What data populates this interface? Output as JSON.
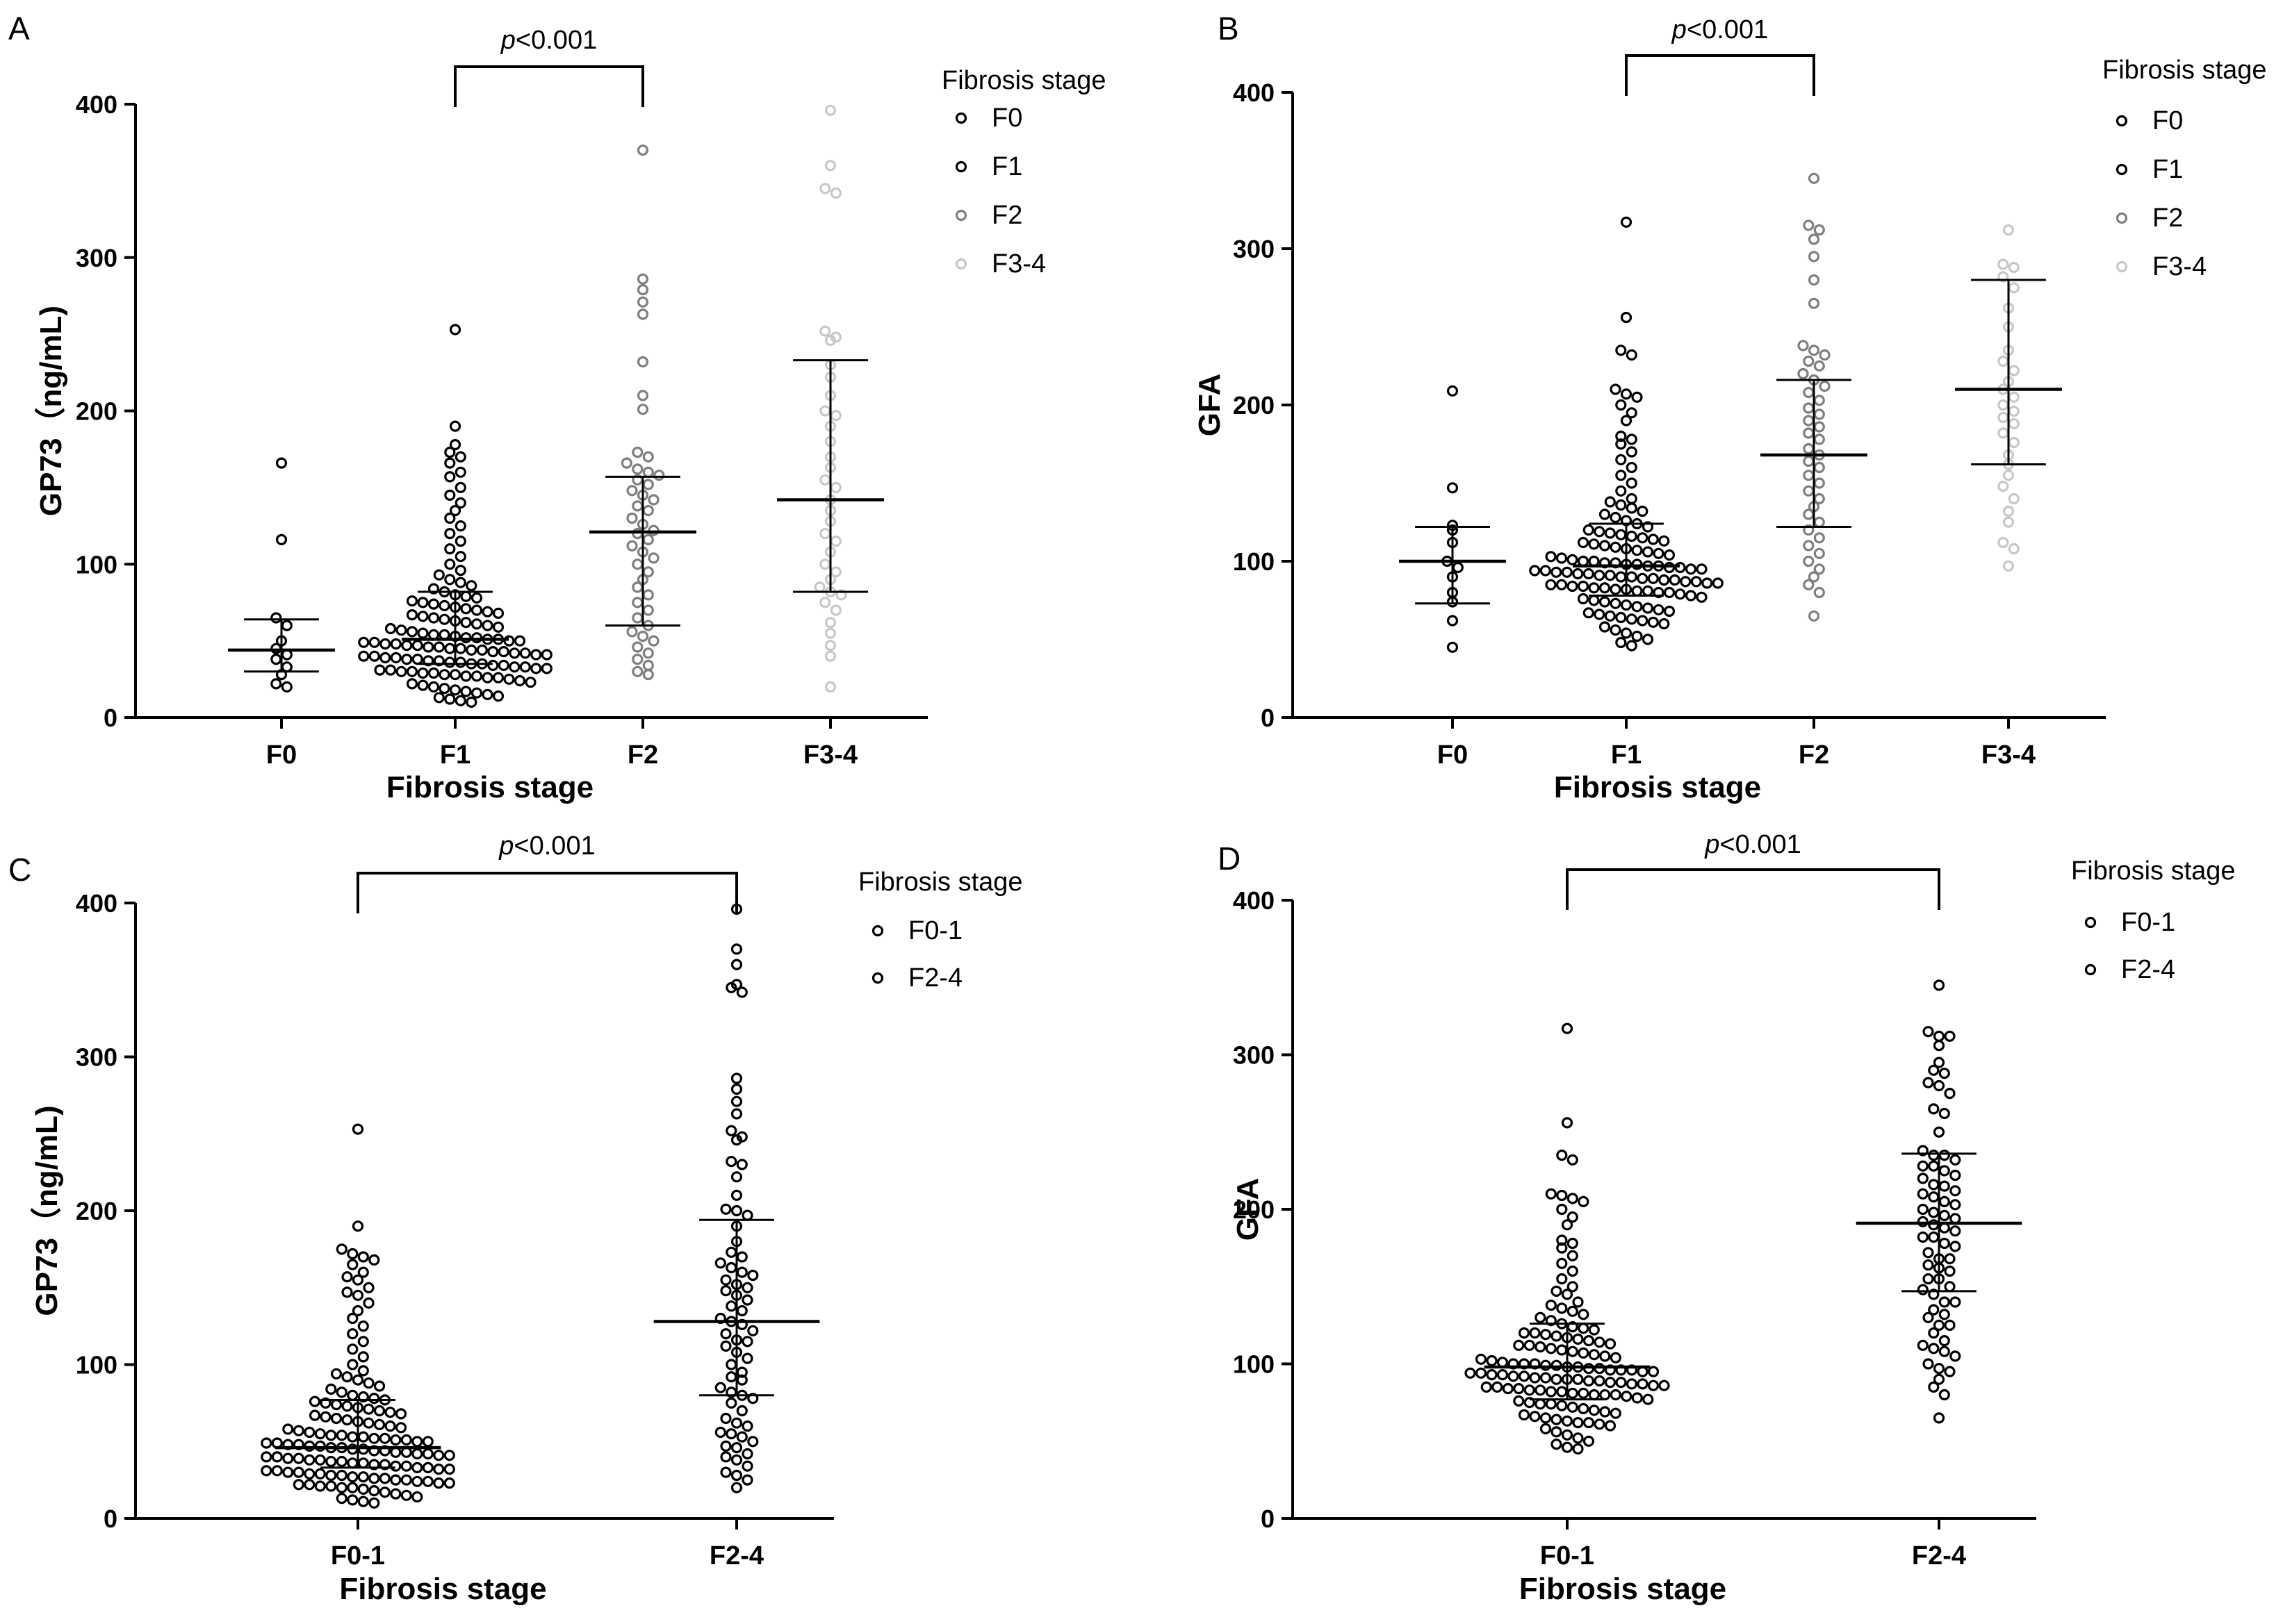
{
  "colors": {
    "F0": "#000000",
    "F1": "#000000",
    "F2": "#7f7f7f",
    "F3-4": "#c8c8c8",
    "F0-1": "#000000",
    "F2-4": "#000000",
    "axis": "#000000"
  },
  "chart_data": [
    {
      "id": "A",
      "type": "scatter",
      "panel_label": "A",
      "title": "",
      "xlabel": "Fibrosis stage",
      "ylabel": "GP73（ng/mL)",
      "ylim": [
        0,
        400
      ],
      "yticks": [
        0,
        100,
        200,
        300,
        400
      ],
      "categories": [
        "F0",
        "F1",
        "F2",
        "F3-4"
      ],
      "legend_title": "Fibrosis stage",
      "legend": [
        "F0",
        "F1",
        "F2",
        "F3-4"
      ],
      "comparison": {
        "from": "F1",
        "to": "F2",
        "text": "p<0.001",
        "italic": "p",
        "rest": "<0.001"
      },
      "summary": [
        {
          "category": "F0",
          "median": 44,
          "q1": 30,
          "q3": 64
        },
        {
          "category": "F1",
          "median": 51,
          "q1": 35,
          "q3": 82
        },
        {
          "category": "F2",
          "median": 121,
          "q1": 60,
          "q3": 157
        },
        {
          "category": "F3-4",
          "median": 142,
          "q1": 82,
          "q3": 233
        }
      ],
      "series": [
        {
          "name": "F0",
          "values": [
            166,
            116,
            65,
            60,
            50,
            45,
            41,
            38,
            33,
            28,
            22,
            20
          ]
        },
        {
          "name": "F1",
          "values": [
            253,
            190,
            178,
            173,
            170,
            166,
            160,
            157,
            150,
            145,
            140,
            135,
            130,
            125,
            120,
            115,
            110,
            105,
            100,
            96,
            93,
            90,
            88,
            86,
            84,
            82,
            80,
            79,
            78,
            76,
            75,
            74,
            73,
            72,
            71,
            70,
            69,
            68,
            67,
            66,
            65,
            64,
            63,
            62,
            61,
            60,
            59,
            58,
            57,
            56,
            55,
            54,
            54,
            53,
            52,
            52,
            51,
            51,
            50,
            50,
            49,
            49,
            48,
            48,
            47,
            47,
            46,
            46,
            45,
            45,
            44,
            44,
            43,
            43,
            42,
            42,
            41,
            41,
            40,
            40,
            39,
            39,
            38,
            38,
            37,
            37,
            36,
            36,
            35,
            35,
            34,
            34,
            33,
            33,
            32,
            32,
            31,
            31,
            30,
            30,
            29,
            29,
            28,
            28,
            27,
            27,
            26,
            26,
            25,
            24,
            23,
            22,
            21,
            20,
            19,
            18,
            17,
            16,
            15,
            14,
            13,
            12,
            11,
            10
          ]
        },
        {
          "name": "F2",
          "values": [
            370,
            286,
            279,
            271,
            263,
            232,
            210,
            201,
            173,
            170,
            166,
            162,
            160,
            158,
            155,
            152,
            148,
            145,
            142,
            138,
            135,
            130,
            126,
            122,
            120,
            116,
            112,
            108,
            104,
            100,
            95,
            90,
            85,
            80,
            75,
            70,
            65,
            60,
            56,
            53,
            50,
            46,
            42,
            38,
            34,
            30,
            28
          ]
        },
        {
          "name": "F3-4",
          "values": [
            396,
            360,
            345,
            342,
            252,
            248,
            246,
            230,
            222,
            210,
            200,
            197,
            190,
            180,
            170,
            163,
            155,
            150,
            142,
            135,
            128,
            120,
            115,
            108,
            100,
            95,
            90,
            85,
            82,
            80,
            75,
            70,
            62,
            55,
            47,
            40,
            20
          ]
        }
      ]
    },
    {
      "id": "B",
      "type": "scatter",
      "panel_label": "B",
      "title": "",
      "xlabel": "Fibrosis stage",
      "ylabel": "GFA",
      "ylim": [
        0,
        400
      ],
      "yticks": [
        0,
        100,
        200,
        300,
        400
      ],
      "categories": [
        "F0",
        "F1",
        "F2",
        "F3-4"
      ],
      "legend_title": "Fibrosis stage",
      "legend": [
        "F0",
        "F1",
        "F2",
        "F3-4"
      ],
      "comparison": {
        "from": "F1",
        "to": "F2",
        "text": "p<0.001",
        "italic": "p",
        "rest": "<0.001"
      },
      "summary": [
        {
          "category": "F0",
          "median": 100,
          "q1": 73,
          "q3": 122
        },
        {
          "category": "F1",
          "median": 97,
          "q1": 78,
          "q3": 124
        },
        {
          "category": "F2",
          "median": 168,
          "q1": 122,
          "q3": 216
        },
        {
          "category": "F3-4",
          "median": 210,
          "q1": 162,
          "q3": 280
        }
      ],
      "series": [
        {
          "name": "F0",
          "values": [
            209,
            147,
            123,
            120,
            112,
            100,
            96,
            90,
            80,
            74,
            62,
            45
          ]
        },
        {
          "name": "F1",
          "values": [
            317,
            256,
            235,
            232,
            210,
            207,
            205,
            200,
            195,
            190,
            180,
            178,
            175,
            170,
            165,
            160,
            155,
            150,
            145,
            140,
            138,
            136,
            134,
            132,
            130,
            128,
            126,
            124,
            122,
            120,
            119,
            118,
            117,
            116,
            115,
            114,
            113,
            112,
            111,
            110,
            109,
            108,
            107,
            106,
            105,
            104,
            103,
            102,
            101,
            100,
            100,
            99,
            99,
            98,
            98,
            97,
            97,
            96,
            96,
            95,
            95,
            94,
            94,
            93,
            93,
            92,
            92,
            91,
            91,
            90,
            90,
            89,
            89,
            88,
            88,
            87,
            87,
            86,
            86,
            85,
            85,
            84,
            84,
            83,
            83,
            82,
            82,
            81,
            81,
            80,
            80,
            79,
            78,
            77,
            76,
            75,
            74,
            73,
            72,
            71,
            70,
            69,
            68,
            67,
            66,
            65,
            64,
            63,
            62,
            61,
            60,
            58,
            56,
            54,
            52,
            50,
            48,
            46
          ]
        },
        {
          "name": "F2",
          "values": [
            345,
            315,
            312,
            306,
            295,
            280,
            265,
            238,
            235,
            232,
            228,
            225,
            220,
            216,
            212,
            208,
            203,
            198,
            194,
            190,
            186,
            182,
            178,
            172,
            168,
            164,
            160,
            155,
            150,
            145,
            140,
            135,
            130,
            125,
            120,
            115,
            110,
            105,
            100,
            95,
            90,
            85,
            80,
            65
          ]
        },
        {
          "name": "F3-4",
          "values": [
            312,
            290,
            288,
            282,
            275,
            262,
            250,
            235,
            228,
            222,
            215,
            210,
            205,
            200,
            196,
            192,
            188,
            182,
            176,
            168,
            162,
            155,
            148,
            140,
            132,
            125,
            112,
            108,
            97
          ]
        }
      ]
    },
    {
      "id": "C",
      "type": "scatter",
      "panel_label": "C",
      "title": "",
      "xlabel": "Fibrosis stage",
      "ylabel": "GP73（ng/mL)",
      "ylim": [
        0,
        400
      ],
      "yticks": [
        0,
        100,
        200,
        300,
        400
      ],
      "categories": [
        "F0-1",
        "F2-4"
      ],
      "legend_title": "Fibrosis stage",
      "legend": [
        "F0-1",
        "F2-4"
      ],
      "comparison": {
        "from": "F0-1",
        "to": "F2-4",
        "text": "p<0.001",
        "italic": "p",
        "rest": "<0.001"
      },
      "summary": [
        {
          "category": "F0-1",
          "median": 46,
          "q1": 33,
          "q3": 77
        },
        {
          "category": "F2-4",
          "median": 128,
          "q1": 80,
          "q3": 194
        }
      ],
      "series": [
        {
          "name": "F0-1",
          "values": [
            253,
            190,
            175,
            172,
            170,
            168,
            165,
            160,
            157,
            155,
            150,
            147,
            145,
            140,
            135,
            130,
            125,
            120,
            115,
            110,
            105,
            100,
            96,
            94,
            92,
            90,
            88,
            86,
            84,
            82,
            80,
            79,
            78,
            77,
            76,
            75,
            74,
            73,
            72,
            71,
            70,
            69,
            68,
            67,
            66,
            65,
            64,
            63,
            62,
            61,
            60,
            59,
            58,
            57,
            56,
            55,
            54,
            54,
            53,
            53,
            52,
            52,
            51,
            51,
            50,
            50,
            49,
            49,
            48,
            48,
            47,
            47,
            46,
            46,
            45,
            45,
            44,
            44,
            43,
            43,
            42,
            42,
            41,
            41,
            40,
            40,
            39,
            39,
            38,
            38,
            37,
            37,
            36,
            36,
            35,
            35,
            34,
            34,
            33,
            33,
            32,
            32,
            31,
            31,
            30,
            30,
            29,
            29,
            28,
            28,
            27,
            27,
            26,
            26,
            25,
            25,
            24,
            24,
            23,
            23,
            22,
            22,
            21,
            21,
            20,
            20,
            19,
            18,
            17,
            16,
            15,
            14,
            13,
            12,
            11,
            10
          ]
        },
        {
          "name": "F2-4",
          "values": [
            396,
            370,
            360,
            347,
            345,
            342,
            286,
            279,
            271,
            263,
            252,
            248,
            246,
            232,
            230,
            222,
            210,
            201,
            200,
            197,
            190,
            180,
            173,
            170,
            166,
            163,
            160,
            158,
            155,
            152,
            150,
            148,
            145,
            142,
            138,
            135,
            130,
            128,
            126,
            122,
            120,
            116,
            115,
            112,
            108,
            104,
            100,
            95,
            92,
            90,
            85,
            82,
            80,
            78,
            75,
            70,
            65,
            62,
            60,
            56,
            55,
            53,
            50,
            47,
            46,
            42,
            40,
            38,
            34,
            30,
            28,
            25,
            20
          ]
        }
      ]
    },
    {
      "id": "D",
      "type": "scatter",
      "panel_label": "D",
      "title": "",
      "xlabel": "Fibrosis stage",
      "ylabel": "GFA",
      "ylim": [
        0,
        400
      ],
      "yticks": [
        0,
        100,
        200,
        300,
        400
      ],
      "categories": [
        "F0-1",
        "F2-4"
      ],
      "legend_title": "Fibrosis stage",
      "legend": [
        "F0-1",
        "F2-4"
      ],
      "comparison": {
        "from": "F0-1",
        "to": "F2-4",
        "text": "p<0.001",
        "italic": "p",
        "rest": "<0.001"
      },
      "summary": [
        {
          "category": "F0-1",
          "median": 98,
          "q1": 77,
          "q3": 126
        },
        {
          "category": "F2-4",
          "median": 191,
          "q1": 147,
          "q3": 236
        }
      ],
      "series": [
        {
          "name": "F0-1",
          "values": [
            317,
            256,
            235,
            232,
            210,
            209,
            207,
            205,
            200,
            195,
            190,
            180,
            178,
            175,
            170,
            165,
            160,
            155,
            150,
            147,
            145,
            140,
            138,
            136,
            134,
            132,
            130,
            128,
            126,
            124,
            123,
            122,
            120,
            120,
            119,
            118,
            117,
            116,
            115,
            114,
            113,
            112,
            112,
            111,
            110,
            109,
            108,
            107,
            106,
            105,
            104,
            103,
            102,
            101,
            100,
            100,
            100,
            99,
            99,
            98,
            98,
            97,
            97,
            96,
            96,
            96,
            95,
            95,
            94,
            94,
            93,
            93,
            92,
            92,
            91,
            91,
            90,
            90,
            90,
            89,
            89,
            88,
            88,
            87,
            87,
            86,
            86,
            85,
            85,
            84,
            84,
            83,
            83,
            82,
            82,
            81,
            81,
            80,
            80,
            80,
            79,
            78,
            77,
            76,
            75,
            74,
            74,
            73,
            72,
            71,
            70,
            69,
            68,
            67,
            66,
            65,
            64,
            63,
            62,
            62,
            61,
            60,
            58,
            56,
            54,
            52,
            50,
            48,
            46,
            45
          ]
        },
        {
          "name": "F2-4",
          "values": [
            345,
            315,
            312,
            312,
            306,
            295,
            290,
            288,
            282,
            280,
            275,
            265,
            262,
            250,
            238,
            235,
            235,
            232,
            228,
            228,
            225,
            222,
            220,
            216,
            215,
            212,
            210,
            208,
            205,
            203,
            200,
            198,
            196,
            194,
            192,
            190,
            188,
            186,
            182,
            182,
            178,
            176,
            172,
            168,
            168,
            164,
            162,
            160,
            155,
            155,
            150,
            148,
            145,
            140,
            140,
            135,
            132,
            130,
            125,
            125,
            120,
            115,
            112,
            110,
            108,
            105,
            100,
            97,
            95,
            90,
            85,
            80,
            65
          ]
        }
      ]
    }
  ]
}
